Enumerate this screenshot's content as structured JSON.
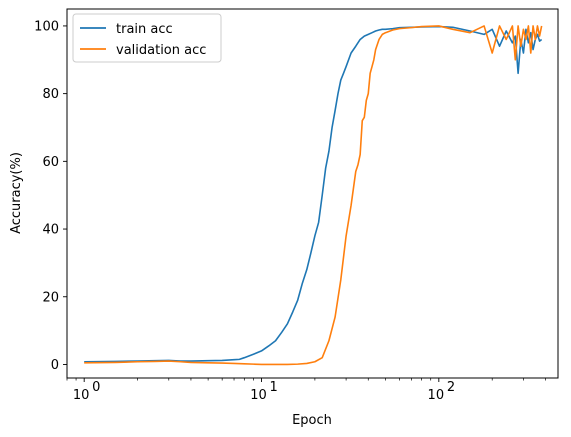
{
  "chart_data": {
    "type": "line",
    "xlabel": "Epoch",
    "ylabel": "Accuracy(%)",
    "xscale": "log",
    "xlim": [
      0.8,
      470
    ],
    "ylim": [
      -4,
      105
    ],
    "xticks": [
      {
        "value": 1,
        "label": "10",
        "exp": "0"
      },
      {
        "value": 10,
        "label": "10",
        "exp": "1"
      },
      {
        "value": 100,
        "label": "10",
        "exp": "2"
      }
    ],
    "yticks": [
      0,
      20,
      40,
      60,
      80,
      100
    ],
    "grid": false,
    "legend_position": "top-left",
    "series": [
      {
        "name": "train acc",
        "color": "#1f77b4",
        "x": [
          1,
          1.5,
          2,
          2.5,
          3,
          3.5,
          4,
          5,
          6,
          7,
          7.5,
          8,
          9,
          10,
          11,
          12,
          13,
          14,
          15,
          16,
          17,
          18,
          19,
          20,
          21,
          22,
          23,
          24,
          25,
          26,
          27,
          28,
          29,
          30,
          32,
          34,
          36,
          38,
          40,
          42,
          44,
          46,
          48,
          50,
          55,
          60,
          70,
          80,
          100,
          120,
          150,
          180,
          200,
          220,
          240,
          260,
          270,
          280,
          290,
          300,
          310,
          320,
          330,
          340,
          350,
          360,
          370,
          380
        ],
        "y": [
          0.8,
          0.9,
          1.0,
          1.1,
          1.2,
          1.0,
          1.0,
          1.1,
          1.2,
          1.4,
          1.5,
          2.0,
          3.0,
          4.0,
          5.5,
          7.0,
          9.5,
          12.0,
          15.5,
          19.0,
          24.0,
          28.0,
          33.0,
          38.0,
          42.0,
          50.0,
          58.0,
          63.0,
          70.0,
          75.0,
          80.0,
          84.0,
          86.0,
          88.0,
          92.0,
          94.0,
          96.0,
          97.0,
          97.5,
          98.0,
          98.5,
          98.8,
          99.0,
          99.0,
          99.2,
          99.5,
          99.6,
          99.7,
          99.8,
          99.6,
          98.5,
          97.5,
          99.0,
          94.0,
          98.5,
          95.0,
          97.0,
          86.0,
          96.0,
          92.0,
          99.0,
          95.0,
          98.0,
          93.0,
          96.0,
          97.5,
          95.5,
          96.0
        ]
      },
      {
        "name": "validation acc",
        "color": "#ff7f0e",
        "x": [
          1,
          1.5,
          2,
          2.5,
          3,
          3.5,
          4,
          5,
          6,
          7,
          8,
          9,
          10,
          12,
          14,
          16,
          18,
          20,
          22,
          24,
          26,
          28,
          30,
          32,
          34,
          35,
          36,
          37,
          38,
          39,
          40,
          41,
          42,
          43,
          44,
          46,
          48,
          50,
          55,
          60,
          70,
          80,
          100,
          120,
          150,
          180,
          200,
          220,
          240,
          260,
          270,
          280,
          290,
          300,
          310,
          320,
          330,
          340,
          350,
          360,
          370,
          380
        ],
        "y": [
          0.5,
          0.6,
          0.8,
          0.9,
          1.0,
          0.8,
          0.6,
          0.5,
          0.4,
          0.3,
          0.2,
          0.1,
          0.0,
          0.0,
          0.0,
          0.1,
          0.3,
          0.8,
          2.0,
          7.0,
          14.0,
          25.0,
          38.0,
          47.0,
          57.0,
          59.0,
          62.0,
          72.0,
          73.0,
          78.0,
          80.0,
          86.0,
          88.0,
          90.0,
          93.0,
          96.0,
          97.5,
          98.0,
          98.8,
          99.2,
          99.5,
          99.8,
          100.0,
          99.0,
          98.0,
          100.0,
          92.0,
          100.0,
          96.0,
          100.0,
          90.0,
          100.0,
          94.0,
          99.0,
          96.0,
          100.0,
          92.0,
          100.0,
          96.0,
          100.0,
          97.0,
          100.0
        ]
      }
    ]
  }
}
